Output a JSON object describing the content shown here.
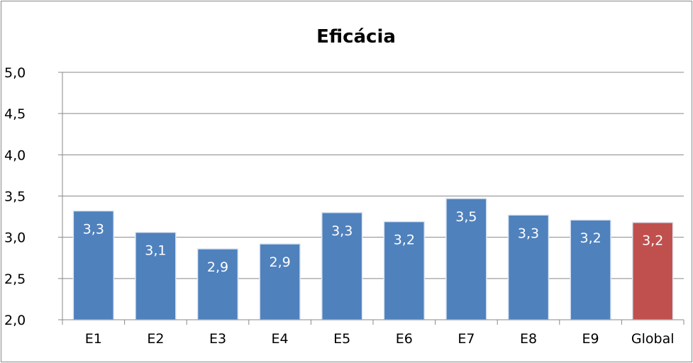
{
  "chart_data": {
    "type": "bar",
    "title": "Eficácia",
    "categories": [
      "E1",
      "E2",
      "E3",
      "E4",
      "E5",
      "E6",
      "E7",
      "E8",
      "E9",
      "Global"
    ],
    "values": [
      3.32,
      3.06,
      2.86,
      2.92,
      3.3,
      3.19,
      3.47,
      3.27,
      3.21,
      3.18
    ],
    "data_labels": [
      "3,3",
      "3,1",
      "2,9",
      "2,9",
      "3,3",
      "3,2",
      "3,5",
      "3,3",
      "3,2",
      "3,2"
    ],
    "y_ticks": [
      {
        "value": 2.0,
        "label": "2,0"
      },
      {
        "value": 2.5,
        "label": "2,5"
      },
      {
        "value": 3.0,
        "label": "3,0"
      },
      {
        "value": 3.5,
        "label": "3,5"
      },
      {
        "value": 4.0,
        "label": "4,0"
      },
      {
        "value": 4.5,
        "label": "4,5"
      },
      {
        "value": 5.0,
        "label": "5,0"
      }
    ],
    "ylim": [
      2.0,
      5.0
    ],
    "xlabel": "",
    "ylabel": "",
    "grid": true,
    "legend": "none",
    "colors": {
      "bar": "#4F81BD",
      "highlight": "#C0504D",
      "gridline": "#888888",
      "axis": "#888888"
    },
    "highlight_category": "Global"
  }
}
